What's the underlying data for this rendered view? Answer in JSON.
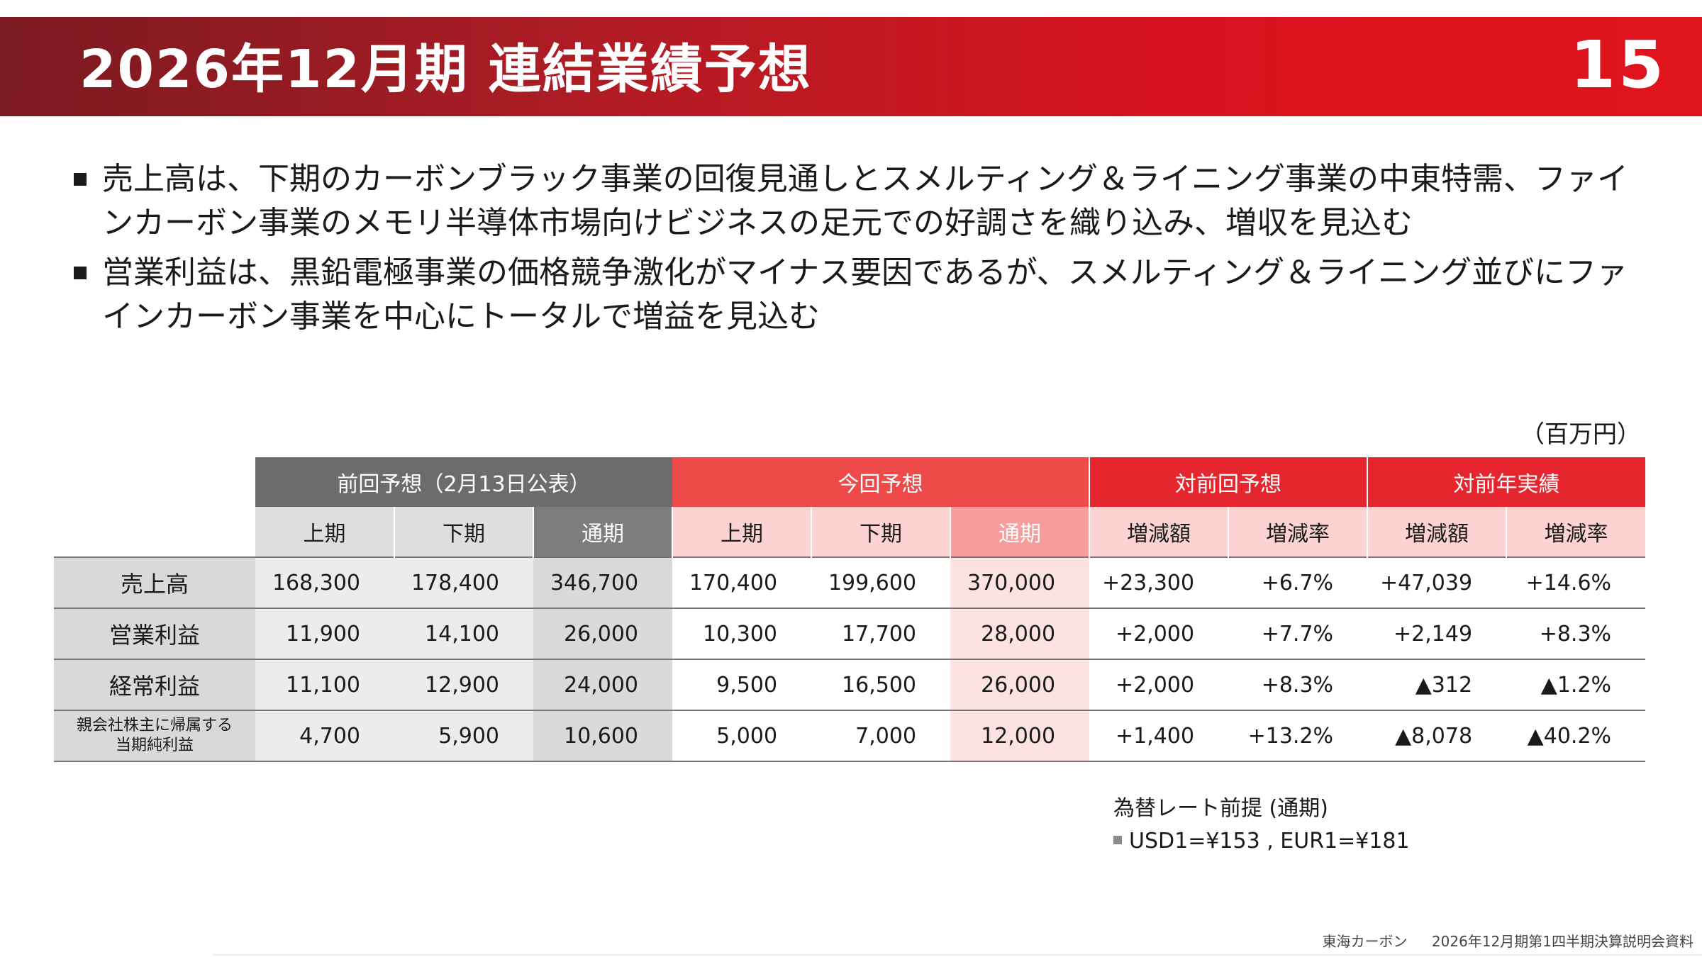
{
  "header": {
    "title": "2026年12月期 連結業績予想",
    "page_number": "15"
  },
  "bullets": [
    "売上高は、下期のカーボンブラック事業の回復見通しとスメルティング＆ライニング事業の中東特需、ファインカーボン事業のメモリ半導体市場向けビジネスの足元での好調さを織り込み、増収を見込む",
    "営業利益は、黒鉛電極事業の価格競争激化がマイナス要因であるが、スメルティング＆ライニング並びにファインカーボン事業を中心にトータルで増益を見込む"
  ],
  "table": {
    "unit": "（百万円）",
    "groups": {
      "previous": "前回予想（2月13日公表）",
      "current": "今回予想",
      "vs_previous": "対前回予想",
      "vs_last_year": "対前年実績"
    },
    "sub": {
      "h1": "上期",
      "h2": "下期",
      "full": "通期",
      "change": "増減額",
      "rate": "増減率"
    },
    "rows": [
      {
        "label": "売上高",
        "prev": [
          "168,300",
          "178,400",
          "346,700"
        ],
        "cur": [
          "170,400",
          "199,600",
          "370,000"
        ],
        "vs_prev": [
          "+23,300",
          "+6.7%"
        ],
        "vs_ly": [
          "+47,039",
          "+14.6%"
        ]
      },
      {
        "label": "営業利益",
        "prev": [
          "11,900",
          "14,100",
          "26,000"
        ],
        "cur": [
          "10,300",
          "17,700",
          "28,000"
        ],
        "vs_prev": [
          "+2,000",
          "+7.7%"
        ],
        "vs_ly": [
          "+2,149",
          "+8.3%"
        ]
      },
      {
        "label": "経常利益",
        "prev": [
          "11,100",
          "12,900",
          "24,000"
        ],
        "cur": [
          "9,500",
          "16,500",
          "26,000"
        ],
        "vs_prev": [
          "+2,000",
          "+8.3%"
        ],
        "vs_ly": [
          "▲312",
          "▲1.2%"
        ]
      },
      {
        "label_line1": "親会社株主に帰属する",
        "label_line2": "当期純利益",
        "prev": [
          "4,700",
          "5,900",
          "10,600"
        ],
        "cur": [
          "5,000",
          "7,000",
          "12,000"
        ],
        "vs_prev": [
          "+1,400",
          "+13.2%"
        ],
        "vs_ly": [
          "▲8,078",
          "▲40.2%"
        ]
      }
    ]
  },
  "fx": {
    "title": "為替レート前提 (通期)",
    "rate": "USD1=¥153 , EUR1=¥181"
  },
  "footer": {
    "company": "東海カーボン",
    "document": "2026年12月期第1四半期決算説明会資料"
  }
}
